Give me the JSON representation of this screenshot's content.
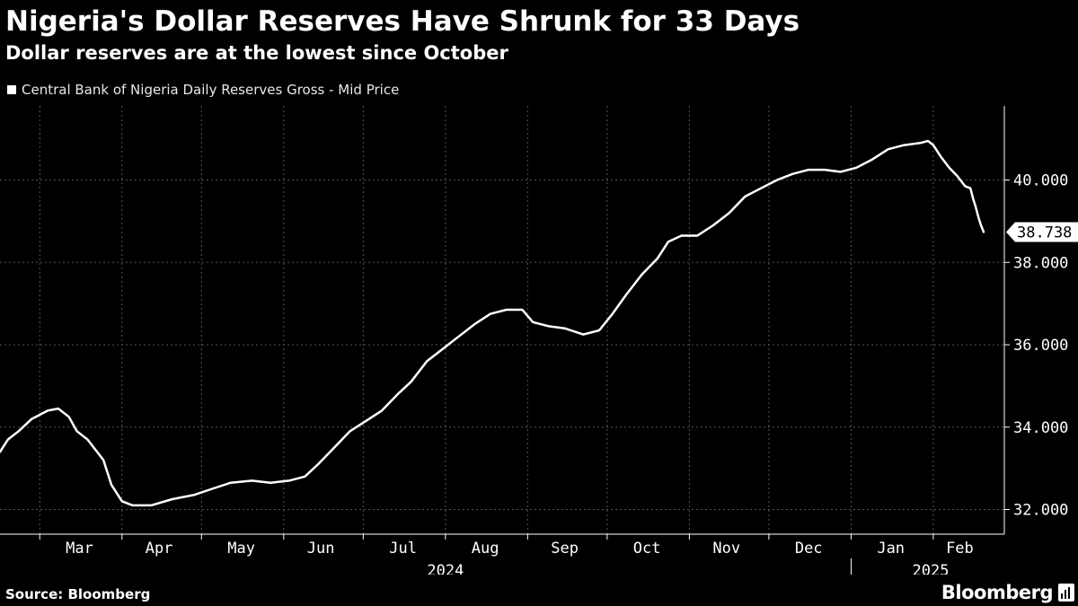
{
  "header": {
    "title": "Nigeria's Dollar Reserves Have Shrunk for 33 Days",
    "subtitle": "Dollar reserves are at the lowest since October"
  },
  "legend": {
    "label": "Central Bank of Nigeria Daily Reserves Gross - Mid Price"
  },
  "footer": {
    "source": "Source: Bloomberg",
    "brand": "Bloomberg"
  },
  "colors": {
    "background": "#000000",
    "line": "#ffffff",
    "grid": "#555555",
    "text": "#ffffff"
  },
  "chart_data": {
    "type": "line",
    "title": "Nigeria's Dollar Reserves Have Shrunk for 33 Days",
    "subtitle": "Dollar reserves are at the lowest since October",
    "xlabel": "",
    "ylabel": "",
    "y_axis_position": "right",
    "ylim": [
      31400,
      41800
    ],
    "y_ticks": [
      32000,
      34000,
      36000,
      38000,
      40000
    ],
    "y_tick_labels": [
      "32.000",
      "34.000",
      "36.000",
      "38.000",
      "40.000"
    ],
    "x_domain": [
      "2024-02-15",
      "2025-02-20"
    ],
    "month_labels": [
      {
        "label": "Mar",
        "date": "2024-03-16"
      },
      {
        "label": "Apr",
        "date": "2024-04-15"
      },
      {
        "label": "May",
        "date": "2024-05-16"
      },
      {
        "label": "Jun",
        "date": "2024-06-15"
      },
      {
        "label": "Jul",
        "date": "2024-07-16"
      },
      {
        "label": "Aug",
        "date": "2024-08-16"
      },
      {
        "label": "Sep",
        "date": "2024-09-15"
      },
      {
        "label": "Oct",
        "date": "2024-10-16"
      },
      {
        "label": "Nov",
        "date": "2024-11-15"
      },
      {
        "label": "Dec",
        "date": "2024-12-16"
      },
      {
        "label": "Jan",
        "date": "2025-01-16"
      },
      {
        "label": "Feb",
        "date": "2025-02-11"
      }
    ],
    "month_boundaries": [
      "2024-03-01",
      "2024-04-01",
      "2024-05-01",
      "2024-06-01",
      "2024-07-01",
      "2024-08-01",
      "2024-09-01",
      "2024-10-01",
      "2024-11-01",
      "2024-12-01",
      "2025-01-01",
      "2025-02-01"
    ],
    "year_labels": [
      {
        "label": "2024",
        "date": "2024-08-01"
      },
      {
        "label": "2025",
        "date": "2025-01-31"
      }
    ],
    "year_divider": "2025-01-01",
    "last_value_label": "38.738",
    "grid": true,
    "legend_position": "top-left",
    "series": [
      {
        "name": "Central Bank of Nigeria Daily Reserves Gross - Mid Price",
        "points": [
          [
            "2024-02-15",
            33400
          ],
          [
            "2024-02-18",
            33700
          ],
          [
            "2024-02-22",
            33900
          ],
          [
            "2024-02-27",
            34200
          ],
          [
            "2024-03-04",
            34400
          ],
          [
            "2024-03-08",
            34450
          ],
          [
            "2024-03-12",
            34250
          ],
          [
            "2024-03-15",
            33900
          ],
          [
            "2024-03-19",
            33700
          ],
          [
            "2024-03-22",
            33450
          ],
          [
            "2024-03-25",
            33200
          ],
          [
            "2024-03-28",
            32600
          ],
          [
            "2024-04-01",
            32200
          ],
          [
            "2024-04-05",
            32100
          ],
          [
            "2024-04-12",
            32100
          ],
          [
            "2024-04-20",
            32250
          ],
          [
            "2024-04-28",
            32350
          ],
          [
            "2024-05-05",
            32500
          ],
          [
            "2024-05-12",
            32650
          ],
          [
            "2024-05-20",
            32700
          ],
          [
            "2024-05-27",
            32650
          ],
          [
            "2024-06-03",
            32700
          ],
          [
            "2024-06-09",
            32800
          ],
          [
            "2024-06-14",
            33100
          ],
          [
            "2024-06-20",
            33500
          ],
          [
            "2024-06-26",
            33900
          ],
          [
            "2024-07-02",
            34150
          ],
          [
            "2024-07-08",
            34400
          ],
          [
            "2024-07-14",
            34800
          ],
          [
            "2024-07-19",
            35100
          ],
          [
            "2024-07-25",
            35600
          ],
          [
            "2024-07-31",
            35900
          ],
          [
            "2024-08-06",
            36200
          ],
          [
            "2024-08-12",
            36500
          ],
          [
            "2024-08-18",
            36750
          ],
          [
            "2024-08-24",
            36850
          ],
          [
            "2024-08-30",
            36850
          ],
          [
            "2024-09-03",
            36550
          ],
          [
            "2024-09-09",
            36450
          ],
          [
            "2024-09-15",
            36400
          ],
          [
            "2024-09-22",
            36250
          ],
          [
            "2024-09-28",
            36350
          ],
          [
            "2024-10-03",
            36750
          ],
          [
            "2024-10-08",
            37200
          ],
          [
            "2024-10-14",
            37700
          ],
          [
            "2024-10-20",
            38100
          ],
          [
            "2024-10-24",
            38500
          ],
          [
            "2024-10-29",
            38650
          ],
          [
            "2024-11-04",
            38650
          ],
          [
            "2024-11-10",
            38900
          ],
          [
            "2024-11-16",
            39200
          ],
          [
            "2024-11-22",
            39600
          ],
          [
            "2024-11-28",
            39800
          ],
          [
            "2024-12-04",
            40000
          ],
          [
            "2024-12-10",
            40150
          ],
          [
            "2024-12-16",
            40250
          ],
          [
            "2024-12-22",
            40250
          ],
          [
            "2024-12-28",
            40200
          ],
          [
            "2025-01-03",
            40300
          ],
          [
            "2025-01-09",
            40500
          ],
          [
            "2025-01-15",
            40750
          ],
          [
            "2025-01-21",
            40850
          ],
          [
            "2025-01-27",
            40900
          ],
          [
            "2025-01-30",
            40950
          ],
          [
            "2025-02-01",
            40850
          ],
          [
            "2025-02-04",
            40550
          ],
          [
            "2025-02-07",
            40300
          ],
          [
            "2025-02-10",
            40100
          ],
          [
            "2025-02-13",
            39850
          ],
          [
            "2025-02-15",
            39800
          ],
          [
            "2025-02-16",
            39550
          ],
          [
            "2025-02-17",
            39350
          ],
          [
            "2025-02-18",
            39100
          ],
          [
            "2025-02-19",
            38900
          ],
          [
            "2025-02-20",
            38738
          ]
        ]
      }
    ]
  }
}
